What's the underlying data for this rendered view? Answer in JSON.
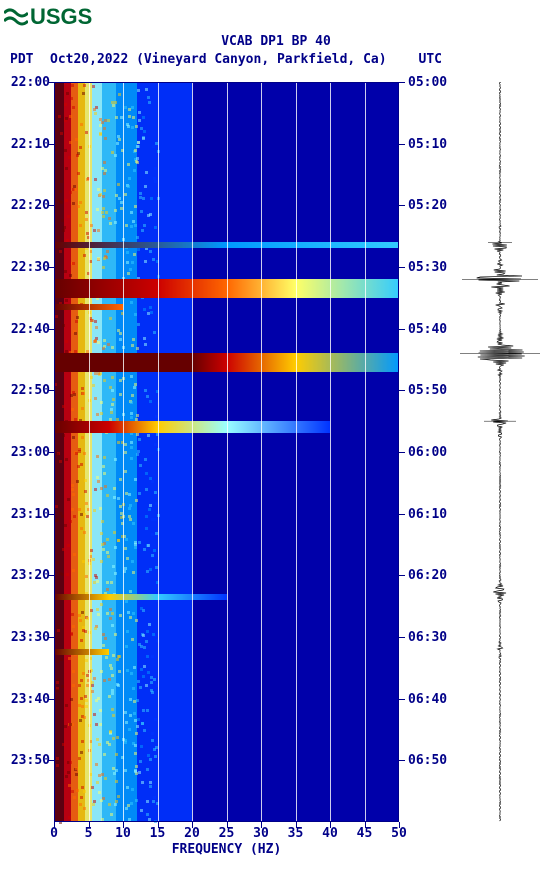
{
  "logo_text": "USGS",
  "title": "VCAB DP1 BP 40",
  "date_line": "Oct20,2022 (Vineyard Canyon, Parkfield, Ca)",
  "tz_left": "PDT",
  "tz_right": "UTC",
  "xlabel": "FREQUENCY (HZ)",
  "spectrogram": {
    "type": "spectrogram",
    "xlim": [
      0,
      50
    ],
    "xtick_step": 5,
    "xticks": [
      "0",
      "5",
      "10",
      "15",
      "20",
      "25",
      "30",
      "35",
      "40",
      "45",
      "50"
    ],
    "y_left_ticks": [
      "22:00",
      "22:10",
      "22:20",
      "22:30",
      "22:40",
      "22:50",
      "23:00",
      "23:10",
      "23:20",
      "23:30",
      "23:40",
      "23:50"
    ],
    "y_right_ticks": [
      "05:00",
      "05:10",
      "05:20",
      "05:30",
      "05:40",
      "05:50",
      "06:00",
      "06:10",
      "06:20",
      "06:30",
      "06:40",
      "06:50"
    ],
    "y_range_minutes": 120,
    "colormap_hex": [
      "#000066",
      "#0000aa",
      "#0033ff",
      "#0099ff",
      "#33ccff",
      "#99ffff",
      "#ffff66",
      "#ffcc00",
      "#ff6600",
      "#cc0000",
      "#660000"
    ],
    "low_freq_bands": [
      {
        "freq_start": 0,
        "freq_end": 1.5,
        "color": "#660000"
      },
      {
        "freq_start": 1.5,
        "freq_end": 2.5,
        "color": "#cc0000"
      },
      {
        "freq_start": 2.5,
        "freq_end": 3.5,
        "color": "#ff6600"
      },
      {
        "freq_start": 3.5,
        "freq_end": 4.5,
        "color": "#ffcc00"
      },
      {
        "freq_start": 4.5,
        "freq_end": 5.5,
        "color": "#ffff66"
      },
      {
        "freq_start": 5.5,
        "freq_end": 7,
        "color": "#99ffff"
      },
      {
        "freq_start": 7,
        "freq_end": 9,
        "color": "#33ccff"
      },
      {
        "freq_start": 9,
        "freq_end": 12,
        "color": "#0099ff"
      },
      {
        "freq_start": 12,
        "freq_end": 20,
        "color": "#0033ff"
      }
    ],
    "events": [
      {
        "time_min": 26,
        "width_min": 1,
        "freq_end": 50,
        "colors": [
          {
            "f": 0,
            "c": "#660000"
          },
          {
            "f": 25,
            "c": "#0099ff"
          },
          {
            "f": 50,
            "c": "#33ccff"
          }
        ]
      },
      {
        "time_min": 32,
        "width_min": 3,
        "freq_end": 50,
        "colors": [
          {
            "f": 0,
            "c": "#660000"
          },
          {
            "f": 15,
            "c": "#cc0000"
          },
          {
            "f": 25,
            "c": "#ff6600"
          },
          {
            "f": 35,
            "c": "#ffff66"
          },
          {
            "f": 50,
            "c": "#33ccff"
          }
        ]
      },
      {
        "time_min": 36,
        "width_min": 1,
        "freq_end": 10,
        "colors": [
          {
            "f": 0,
            "c": "#660000"
          },
          {
            "f": 10,
            "c": "#ff6600"
          }
        ]
      },
      {
        "time_min": 44,
        "width_min": 3,
        "freq_end": 50,
        "colors": [
          {
            "f": 0,
            "c": "#660000"
          },
          {
            "f": 20,
            "c": "#660000"
          },
          {
            "f": 25,
            "c": "#cc0000"
          },
          {
            "f": 35,
            "c": "#ffcc00"
          },
          {
            "f": 50,
            "c": "#0099ff"
          }
        ]
      },
      {
        "time_min": 55,
        "width_min": 2,
        "freq_end": 40,
        "colors": [
          {
            "f": 0,
            "c": "#660000"
          },
          {
            "f": 8,
            "c": "#cc0000"
          },
          {
            "f": 15,
            "c": "#ffcc00"
          },
          {
            "f": 25,
            "c": "#99ffff"
          },
          {
            "f": 40,
            "c": "#0033ff"
          }
        ]
      },
      {
        "time_min": 83,
        "width_min": 1,
        "freq_end": 25,
        "colors": [
          {
            "f": 0,
            "c": "#660000"
          },
          {
            "f": 8,
            "c": "#ffcc00"
          },
          {
            "f": 15,
            "c": "#33ccff"
          },
          {
            "f": 25,
            "c": "#0033ff"
          }
        ]
      },
      {
        "time_min": 92,
        "width_min": 1,
        "freq_end": 8,
        "colors": [
          {
            "f": 0,
            "c": "#660000"
          },
          {
            "f": 8,
            "c": "#ffcc00"
          }
        ]
      }
    ],
    "background_color": "#0000aa",
    "grid_color": "#ffffff",
    "text_color": "#000088",
    "title_fontsize": 13,
    "label_fontsize": 13
  },
  "waveform": {
    "baseline_amp": 0.02,
    "events": [
      {
        "time_min": 26,
        "amp": 0.3
      },
      {
        "time_min": 32,
        "amp": 0.95
      },
      {
        "time_min": 36,
        "amp": 0.15
      },
      {
        "time_min": 44,
        "amp": 1.0
      },
      {
        "time_min": 55,
        "amp": 0.4
      },
      {
        "time_min": 83,
        "amp": 0.25
      },
      {
        "time_min": 92,
        "amp": 0.08
      }
    ],
    "color": "#000000"
  }
}
